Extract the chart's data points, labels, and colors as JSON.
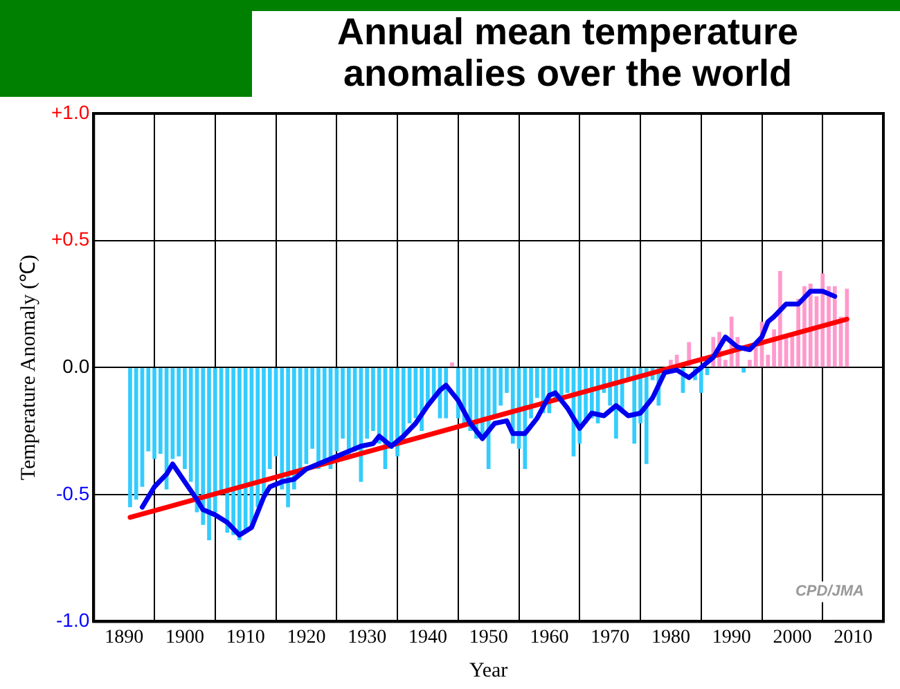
{
  "chart_data": {
    "type": "bar",
    "title": "Annual mean temperature anomalies over the world",
    "xlabel": "Year",
    "ylabel": "Temperature Anomaly (℃)",
    "xlim": [
      1890,
      2010
    ],
    "xticks": [
      1890,
      1900,
      1910,
      1920,
      1930,
      1940,
      1950,
      1960,
      1970,
      1980,
      1990,
      2000,
      2010
    ],
    "ylim": [
      -1,
      1
    ],
    "yticks": [
      {
        "value": 1,
        "label": "+1.0"
      },
      {
        "value": 0.5,
        "label": "+0.5"
      },
      {
        "value": 0,
        "label": "0.0"
      },
      {
        "value": -0.5,
        "label": "-0.5"
      },
      {
        "value": -1,
        "label": "-1.0"
      }
    ],
    "grid": true,
    "marker": "none",
    "annotations": [
      "CPD/JMA"
    ],
    "series": [
      {
        "x": [
          1891,
          1892,
          1893,
          1894,
          1895,
          1896,
          1897,
          1898,
          1899,
          1900,
          1901,
          1902,
          1903,
          1904,
          1905,
          1906,
          1907,
          1908,
          1909,
          1910,
          1911,
          1912,
          1913,
          1914,
          1915,
          1916,
          1917,
          1918,
          1919,
          1920,
          1921,
          1922,
          1923,
          1924,
          1925,
          1926,
          1927,
          1928,
          1929,
          1930,
          1931,
          1932,
          1933,
          1934,
          1935,
          1936,
          1937,
          1938,
          1939,
          1940,
          1941,
          1942,
          1943,
          1944,
          1945,
          1946,
          1947,
          1948,
          1949,
          1950,
          1951,
          1952,
          1953,
          1954,
          1955,
          1956,
          1957,
          1958,
          1959,
          1960,
          1961,
          1962,
          1963,
          1964,
          1965,
          1966,
          1967,
          1968,
          1969,
          1970,
          1971,
          1972,
          1973,
          1974,
          1975,
          1976,
          1977,
          1978,
          1979,
          1980,
          1981,
          1982,
          1983,
          1984,
          1985,
          1986,
          1987,
          1988,
          1989,
          1990,
          1991,
          1992,
          1993,
          1994,
          1995,
          1996,
          1997,
          1998,
          1999,
          2000,
          2001,
          2002,
          2003,
          2004,
          2005,
          2006,
          2007,
          2008,
          2009
        ],
        "values": [
          -0.55,
          -0.52,
          -0.47,
          -0.33,
          -0.36,
          -0.34,
          -0.48,
          -0.36,
          -0.35,
          -0.4,
          -0.45,
          -0.57,
          -0.62,
          -0.68,
          -0.57,
          -0.5,
          -0.65,
          -0.66,
          -0.68,
          -0.64,
          -0.63,
          -0.55,
          -0.5,
          -0.4,
          -0.35,
          -0.48,
          -0.55,
          -0.48,
          -0.4,
          -0.38,
          -0.32,
          -0.4,
          -0.38,
          -0.4,
          -0.33,
          -0.28,
          -0.35,
          -0.33,
          -0.45,
          -0.28,
          -0.25,
          -0.3,
          -0.4,
          -0.32,
          -0.35,
          -0.3,
          -0.22,
          -0.2,
          -0.25,
          -0.15,
          -0.12,
          -0.2,
          -0.2,
          0.02,
          -0.2,
          -0.22,
          -0.25,
          -0.28,
          -0.27,
          -0.4,
          -0.2,
          -0.15,
          -0.1,
          -0.3,
          -0.32,
          -0.4,
          -0.2,
          -0.12,
          -0.18,
          -0.18,
          -0.12,
          -0.12,
          -0.1,
          -0.35,
          -0.3,
          -0.22,
          -0.2,
          -0.22,
          -0.1,
          -0.15,
          -0.28,
          -0.18,
          -0.05,
          -0.3,
          -0.22,
          -0.38,
          -0.05,
          -0.15,
          null,
          0.03,
          0.05,
          -0.1,
          0.1,
          -0.05,
          -0.1,
          -0.03,
          0.12,
          0.14,
          0.03,
          0.2,
          0.12,
          -0.02,
          0.03,
          0.08,
          0.18,
          0.05,
          0.15,
          0.38,
          0.12,
          0.13,
          0.27,
          0.32,
          0.33,
          0.28,
          0.37,
          0.32,
          0.32,
          0.2,
          0.31
        ],
        "colors": [
          "#33ccff",
          "#33ccff",
          "#33ccff",
          "#33ccff",
          "#33ccff",
          "#33ccff",
          "#33ccff",
          "#33ccff",
          "#33ccff",
          "#33ccff",
          "#33ccff",
          "#33ccff",
          "#33ccff",
          "#33ccff",
          "#33ccff",
          "#33ccff",
          "#33ccff",
          "#33ccff",
          "#33ccff",
          "#33ccff",
          "#33ccff",
          "#33ccff",
          "#33ccff",
          "#33ccff",
          "#33ccff",
          "#33ccff",
          "#33ccff",
          "#33ccff",
          "#33ccff",
          "#33ccff",
          "#33ccff",
          "#33ccff",
          "#33ccff",
          "#33ccff",
          "#33ccff",
          "#33ccff",
          "#33ccff",
          "#33ccff",
          "#33ccff",
          "#33ccff",
          "#33ccff",
          "#33ccff",
          "#33ccff",
          "#33ccff",
          "#33ccff",
          "#33ccff",
          "#33ccff",
          "#33ccff",
          "#33ccff",
          "#33ccff",
          "#33ccff",
          "#33ccff",
          "#33ccff",
          "#ff99cc",
          "#33ccff",
          "#33ccff",
          "#33ccff",
          "#33ccff",
          "#33ccff",
          "#33ccff",
          "#33ccff",
          "#33ccff",
          "#33ccff",
          "#33ccff",
          "#33ccff",
          "#33ccff",
          "#33ccff",
          "#33ccff",
          "#33ccff",
          "#33ccff",
          "#33ccff",
          "#33ccff",
          "#33ccff",
          "#33ccff",
          "#33ccff",
          "#33ccff",
          "#33ccff",
          "#33ccff",
          "#33ccff",
          "#33ccff",
          "#33ccff",
          "#33ccff",
          "#33ccff",
          "#33ccff",
          "#33ccff",
          "#33ccff",
          "#33ccff",
          "#33ccff",
          "#33ccff",
          "#ff99cc",
          "#ff99cc",
          "#33ccff",
          "#ff99cc",
          "#33ccff",
          "#33ccff",
          "#33ccff",
          "#ff99cc",
          "#ff99cc",
          "#ff99cc",
          "#ff99cc",
          "#ff99cc",
          "#33ccff",
          "#ff99cc",
          "#ff99cc",
          "#ff99cc",
          "#ff99cc",
          "#ff99cc",
          "#ff99cc",
          "#ff99cc",
          "#ff99cc",
          "#ff99cc",
          "#ff99cc",
          "#ff99cc",
          "#ff99cc",
          "#ff99cc",
          "#ff99cc",
          "#ff99cc",
          "#ff99cc",
          "#ff99cc"
        ]
      },
      {
        "type": "line",
        "color": "#0000ee",
        "x": [
          1893,
          1895,
          1897,
          1898,
          1900,
          1902,
          1903,
          1905,
          1907,
          1909,
          1911,
          1913,
          1914,
          1916,
          1918,
          1920,
          1923,
          1926,
          1929,
          1931,
          1932,
          1934,
          1936,
          1938,
          1940,
          1942,
          1943,
          1945,
          1947,
          1949,
          1951,
          1953,
          1954,
          1956,
          1958,
          1960,
          1961,
          1963,
          1965,
          1967,
          1969,
          1971,
          1973,
          1975,
          1977,
          1979,
          1981,
          1983,
          1985,
          1987,
          1989,
          1991,
          1993,
          1995,
          1996,
          1997,
          1999,
          2001,
          2003,
          2005,
          2007
        ],
        "values": [
          -0.55,
          -0.47,
          -0.42,
          -0.38,
          -0.45,
          -0.52,
          -0.56,
          -0.58,
          -0.61,
          -0.66,
          -0.63,
          -0.51,
          -0.47,
          -0.45,
          -0.44,
          -0.4,
          -0.37,
          -0.34,
          -0.31,
          -0.3,
          -0.27,
          -0.31,
          -0.27,
          -0.22,
          -0.15,
          -0.09,
          -0.07,
          -0.13,
          -0.22,
          -0.28,
          -0.22,
          -0.21,
          -0.26,
          -0.26,
          -0.2,
          -0.11,
          -0.1,
          -0.16,
          -0.24,
          -0.18,
          -0.19,
          -0.15,
          -0.19,
          -0.18,
          -0.12,
          -0.02,
          -0.01,
          -0.04,
          0.0,
          0.04,
          0.12,
          0.08,
          0.07,
          0.12,
          0.18,
          0.2,
          0.25,
          0.25,
          0.3,
          0.3,
          0.28
        ]
      },
      {
        "type": "line",
        "color": "#ff0000",
        "x": [
          1891,
          2009
        ],
        "values": [
          -0.59,
          0.19
        ]
      }
    ]
  }
}
